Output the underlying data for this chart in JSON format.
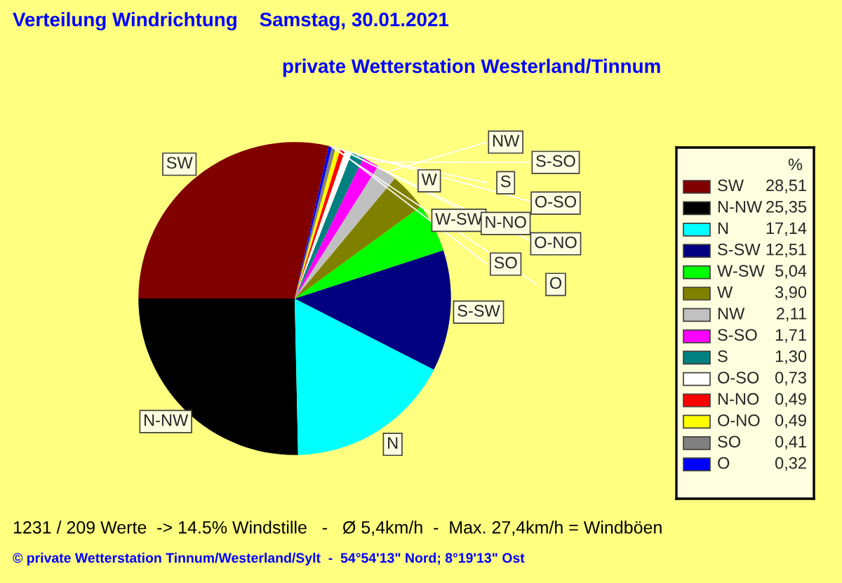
{
  "chart_data": {
    "type": "pie",
    "title": "Verteilung Windrichtung    Samstag, 30.01.2021",
    "subtitle": "private Wetterstation Westerland/Tinnum",
    "categories": [
      "SW",
      "N-NW",
      "N",
      "S-SW",
      "W-SW",
      "W",
      "NW",
      "S-SO",
      "S",
      "O-SO",
      "N-NO",
      "O-NO",
      "SO",
      "O"
    ],
    "values": [
      28.51,
      25.35,
      17.14,
      12.51,
      5.04,
      3.9,
      2.11,
      1.71,
      1.3,
      0.73,
      0.49,
      0.49,
      0.41,
      0.32
    ],
    "value_labels": [
      "28,51",
      "25,35",
      "17,14",
      "12,51",
      "5,04",
      "3,90",
      "2,11",
      "1,71",
      "1,30",
      "0,73",
      "0,49",
      "0,49",
      "0,41",
      "0,32"
    ],
    "colors": [
      "#800000",
      "#000000",
      "#00ffff",
      "#000080",
      "#00ff00",
      "#808000",
      "#c0c0c0",
      "#ff00ff",
      "#008080",
      "#ffffff",
      "#ff0000",
      "#ffff00",
      "#808080",
      "#0000ff"
    ],
    "legend_title": "%",
    "legend": "right",
    "annotations": [
      "1231 / 209 Werte  -> 14.5% Windstille   -   Ø 5,4km/h  -  Max. 27,4km/h = Windböen",
      "© private Wetterstation Tinnum/Westerland/Sylt  -  54°54'13\" Nord; 8°19'13\" Ost"
    ]
  }
}
